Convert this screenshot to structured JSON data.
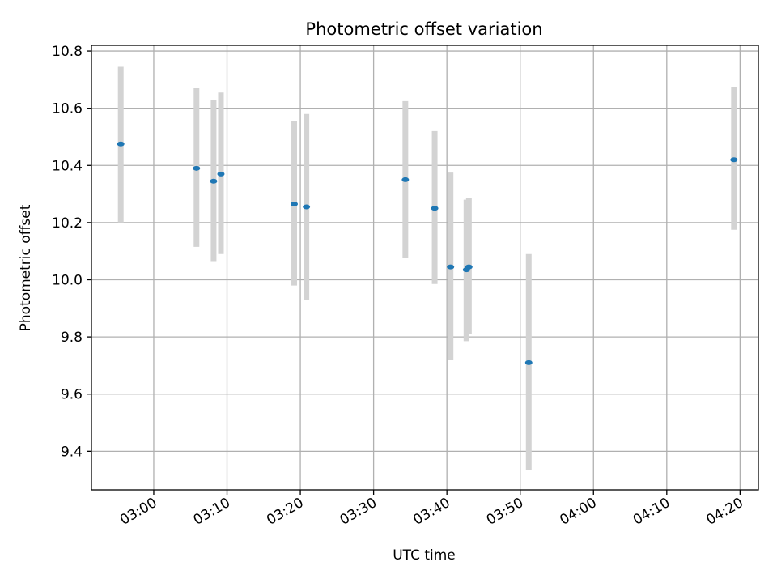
{
  "chart_data": {
    "type": "scatter",
    "title": "Photometric offset variation",
    "xlabel": "UTC time",
    "ylabel": "Photometric offset",
    "x_ticks": [
      "03:00",
      "03:10",
      "03:20",
      "03:30",
      "03:40",
      "03:50",
      "04:00",
      "04:10",
      "04:20"
    ],
    "y_ticks": [
      "9.4",
      "9.6",
      "9.8",
      "10.0",
      "10.2",
      "10.4",
      "10.6",
      "10.8"
    ],
    "xlim": [
      "02:51:30",
      "04:22:30"
    ],
    "ylim": [
      9.265,
      10.82
    ],
    "grid": true,
    "colors": {
      "points": "#1f77b4",
      "error_bars": "#d3d3d3",
      "grid": "#b0b0b0"
    },
    "points": [
      {
        "x": "02:55:30",
        "y": 10.475,
        "y_low": 10.2,
        "y_high": 10.745
      },
      {
        "x": "03:05:50",
        "y": 10.39,
        "y_low": 10.115,
        "y_high": 10.67
      },
      {
        "x": "03:08:10",
        "y": 10.345,
        "y_low": 10.065,
        "y_high": 10.63
      },
      {
        "x": "03:09:10",
        "y": 10.37,
        "y_low": 10.09,
        "y_high": 10.655
      },
      {
        "x": "03:19:10",
        "y": 10.265,
        "y_low": 9.98,
        "y_high": 10.555
      },
      {
        "x": "03:20:50",
        "y": 10.255,
        "y_low": 9.93,
        "y_high": 10.58
      },
      {
        "x": "03:34:20",
        "y": 10.35,
        "y_low": 10.075,
        "y_high": 10.625
      },
      {
        "x": "03:38:20",
        "y": 10.25,
        "y_low": 9.985,
        "y_high": 10.52
      },
      {
        "x": "03:40:30",
        "y": 10.045,
        "y_low": 9.72,
        "y_high": 10.375
      },
      {
        "x": "03:42:40",
        "y": 10.035,
        "y_low": 9.785,
        "y_high": 10.28
      },
      {
        "x": "03:43:00",
        "y": 10.045,
        "y_low": 9.81,
        "y_high": 10.285
      },
      {
        "x": "03:51:10",
        "y": 9.71,
        "y_low": 9.335,
        "y_high": 10.09
      },
      {
        "x": "04:19:10",
        "y": 10.42,
        "y_low": 10.175,
        "y_high": 10.675
      }
    ]
  }
}
